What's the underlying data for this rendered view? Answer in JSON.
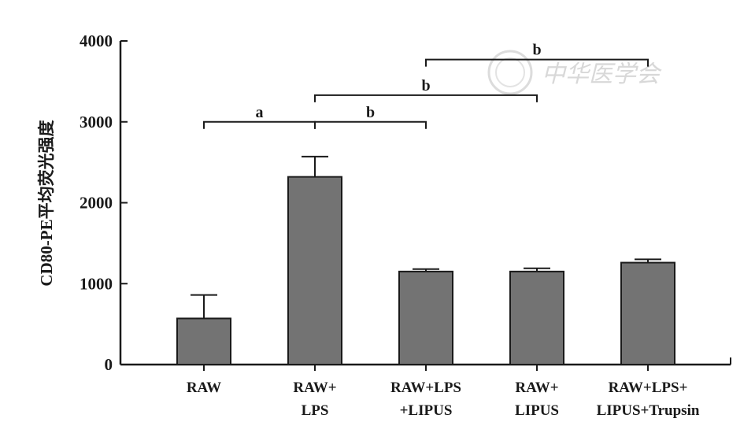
{
  "chart_data": {
    "type": "bar",
    "ylabel": "CD80-PE平均荧光强度",
    "xlabel": "",
    "ylim": [
      0,
      4000
    ],
    "yticks": [
      0,
      1000,
      2000,
      3000,
      4000
    ],
    "ytick_labels": [
      "0",
      "1000",
      "2000",
      "3000",
      "4000"
    ],
    "categories": [
      [
        "RAW"
      ],
      [
        "RAW+",
        "LPS"
      ],
      [
        "RAW+LPS",
        "+LIPUS"
      ],
      [
        "RAW+",
        "LIPUS"
      ],
      [
        "RAW+LPS+",
        "LIPUS+Trupsin"
      ]
    ],
    "values": [
      570,
      2320,
      1150,
      1150,
      1260
    ],
    "errors": [
      290,
      250,
      30,
      40,
      40
    ],
    "bar_color": "#737373",
    "significance": [
      {
        "from": 0,
        "to": 1,
        "label": "a",
        "level": 3000
      },
      {
        "from": 1,
        "to": 2,
        "label": "b",
        "level": 3000
      },
      {
        "from": 1,
        "to": 3,
        "label": "b",
        "level": 3330
      },
      {
        "from": 2,
        "to": 4,
        "label": "b",
        "level": 3770
      }
    ],
    "watermark": "中华医学会"
  }
}
